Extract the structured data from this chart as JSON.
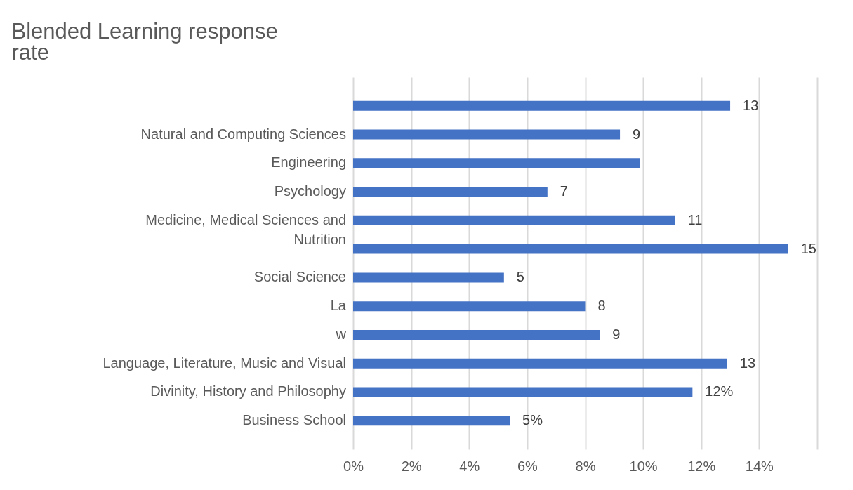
{
  "chart_data": {
    "type": "bar",
    "orientation": "horizontal",
    "title": "Blended Learning response\nrate",
    "categories": [
      null,
      "Natural and Computing Sciences",
      "Engineering",
      "Psychology",
      "Medicine, Medical Sciences and\nNutrition",
      null,
      "Social Science",
      "La",
      "w",
      "Language, Literature, Music and Visual",
      "Divinity, History and Philosophy",
      "Business School"
    ],
    "values": [
      13.0,
      9.2,
      9.9,
      6.7,
      11.1,
      15.0,
      5.2,
      8.0,
      8.5,
      12.9,
      11.7,
      5.4
    ],
    "value_labels": [
      "13",
      "9",
      null,
      "7",
      "11",
      "15",
      "5",
      "8",
      "9",
      "13",
      "12%",
      "5%"
    ],
    "color": "#4472c4",
    "xlim": [
      0,
      16
    ],
    "xticks": [
      {
        "value": 0,
        "label": "0%"
      },
      {
        "value": 2,
        "label": "2%"
      },
      {
        "value": 4,
        "label": "4%"
      },
      {
        "value": 6,
        "label": "6%"
      },
      {
        "value": 8,
        "label": "8%"
      },
      {
        "value": 10,
        "label": "10%"
      },
      {
        "value": 12,
        "label": "12%"
      },
      {
        "value": 14,
        "label": "14%"
      },
      {
        "value": 16,
        "label": null
      }
    ],
    "grid": "x"
  }
}
